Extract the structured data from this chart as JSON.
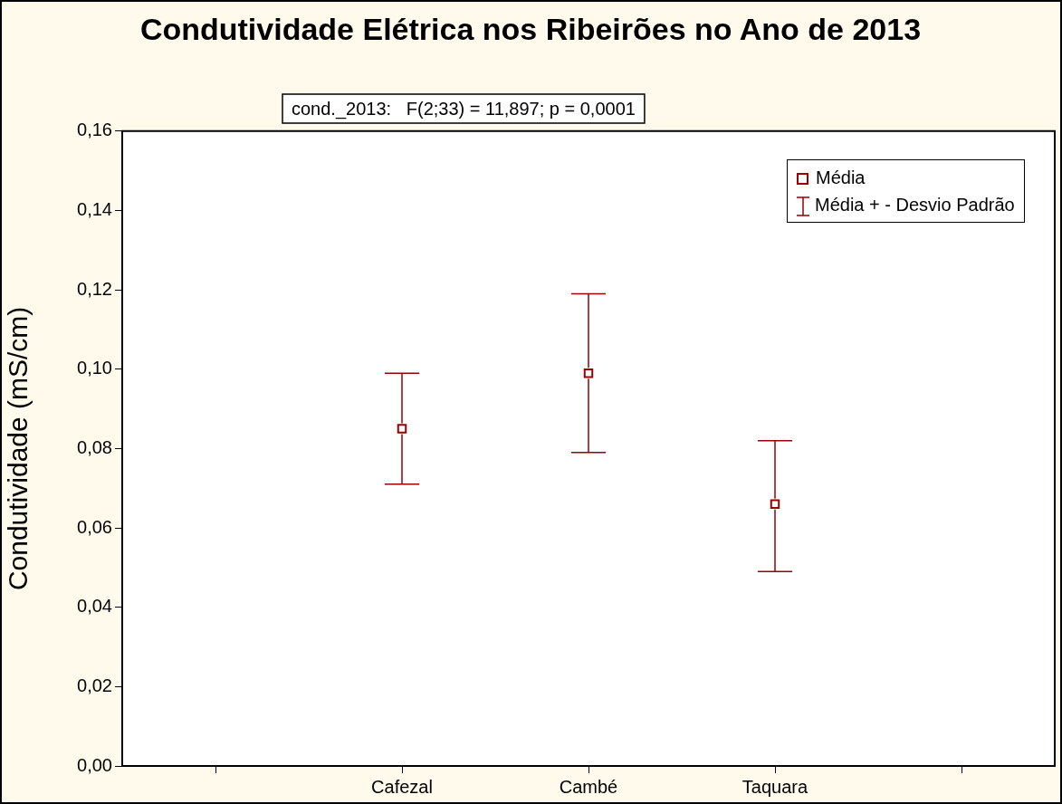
{
  "chart_data": {
    "type": "scatter",
    "title": "Condutividade Elétrica nos Ribeirões no Ano de 2013",
    "ylabel": "Condutividade (mS/cm)",
    "categories": [
      null,
      "Cafezal",
      "Cambé",
      "Taquara",
      null
    ],
    "series": [
      {
        "name": "Média",
        "color": "#990000",
        "values": [
          null,
          0.085,
          0.099,
          0.066,
          null
        ],
        "errors": [
          null,
          [
            0.071,
            0.099
          ],
          [
            0.079,
            0.119
          ],
          [
            0.049,
            0.082
          ],
          null
        ]
      }
    ],
    "annotations": [
      "cond._2013:   F(2;33) = 11,897; p = 0,0001",
      "Média + - Desvio Padrão"
    ],
    "ylim": [
      0,
      0.16
    ],
    "yticks": [
      {
        "value": 0,
        "label": "0,00"
      },
      {
        "value": 0.02,
        "label": "0,02"
      },
      {
        "value": 0.04,
        "label": "0,04"
      },
      {
        "value": 0.06,
        "label": "0,06"
      },
      {
        "value": 0.08,
        "label": "0,08"
      },
      {
        "value": 0.1,
        "label": "0,10"
      },
      {
        "value": 0.12,
        "label": "0,12"
      },
      {
        "value": 0.14,
        "label": "0,14"
      },
      {
        "value": 0.16,
        "label": "0,16"
      }
    ],
    "marker": "square",
    "grid": false,
    "legend": "top right"
  }
}
